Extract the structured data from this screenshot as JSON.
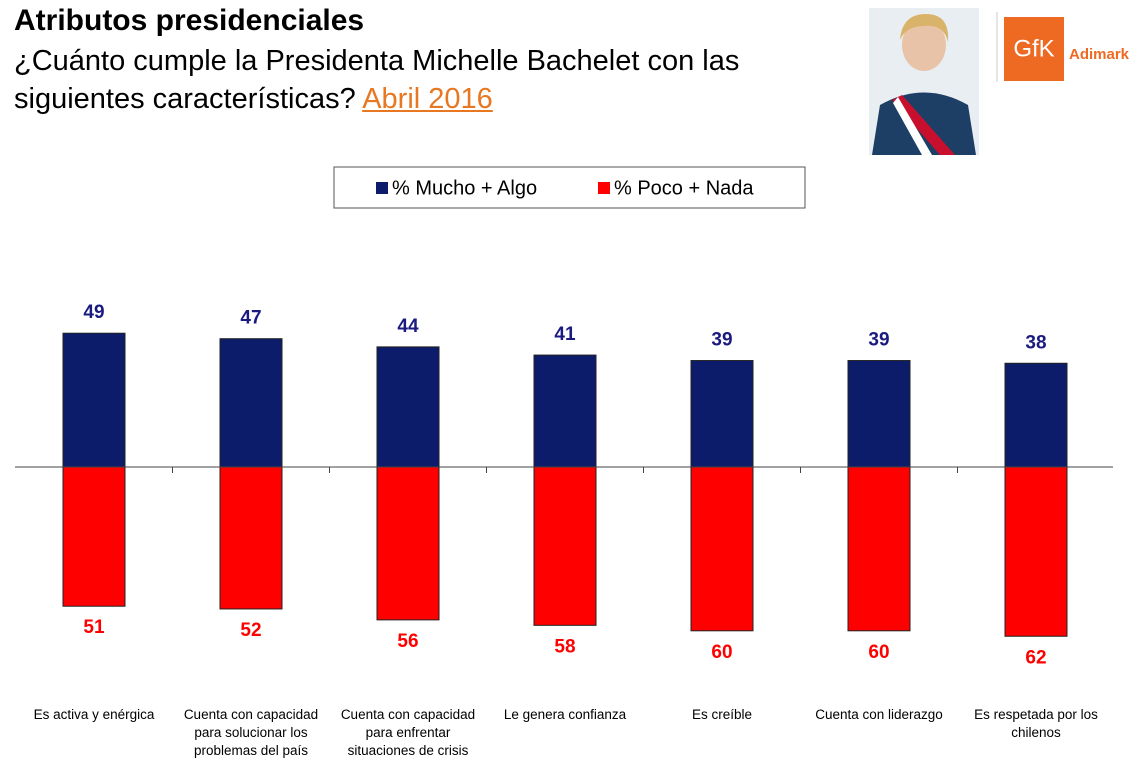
{
  "header": {
    "title": "Atributos presidenciales",
    "subtitle": "¿Cuánto cumple la Presidenta Michelle Bachelet con las siguientes características?",
    "date": "Abril 2016",
    "logo_mark": "GfK",
    "logo_name": "Adimark"
  },
  "chart_data": {
    "type": "diverging-bar",
    "categories": [
      "Es activa y enérgica",
      "Cuenta con capacidad para solucionar los problemas del país",
      "Cuenta con capacidad para enfrentar situaciones de crisis",
      "Le genera confianza",
      "Es creíble",
      "Cuenta con liderazgo",
      "Es respetada por los chilenos"
    ],
    "series": [
      {
        "name": "% Mucho + Algo",
        "color": "#0c1c6b",
        "values": [
          49,
          47,
          44,
          41,
          39,
          39,
          38
        ]
      },
      {
        "name": "% Poco + Nada",
        "color": "#ff0000",
        "values": [
          51,
          52,
          56,
          58,
          60,
          60,
          62
        ]
      }
    ]
  }
}
